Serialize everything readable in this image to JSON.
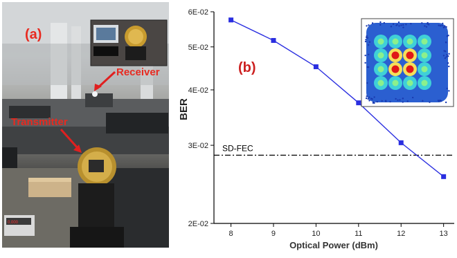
{
  "photo": {
    "panel_label": "(a)",
    "receiver_label": "Receiver",
    "transmitter_label": "Transmitter"
  },
  "chart_data": {
    "type": "line",
    "panel_label": "(b)",
    "xlabel": "Optical Power (dBm)",
    "ylabel": "BER",
    "x_ticks": [
      8,
      9,
      10,
      11,
      12,
      13
    ],
    "y_ticks": [
      "2E-02",
      "3E-02",
      "4E-02",
      "5E-02",
      "6E-02"
    ],
    "y_tick_values": [
      0.02,
      0.03,
      0.04,
      0.05,
      0.06
    ],
    "ylim": [
      0.02,
      0.06
    ],
    "xlim": [
      7.6,
      13.25
    ],
    "y_scale": "log",
    "grid": false,
    "series": [
      {
        "x": [
          8,
          9,
          10,
          11,
          12,
          13
        ],
        "values": [
          0.0575,
          0.0517,
          0.0451,
          0.0374,
          0.0304,
          0.0255
        ],
        "color": "#2a2ee0",
        "marker": "square"
      }
    ],
    "threshold": {
      "label": "SD-FEC",
      "value": 0.0285,
      "style": "dash-dot"
    },
    "inset": "constellation diagram"
  }
}
